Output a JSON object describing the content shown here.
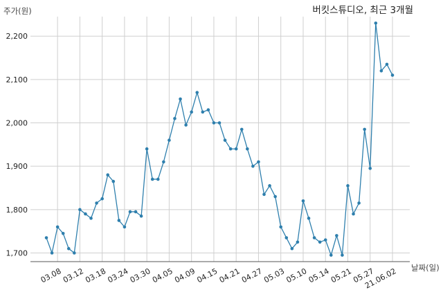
{
  "chart_data": {
    "type": "line",
    "title": "버킷스튜디오, 최근 3개월",
    "ylabel": "주가(원)",
    "xlabel": "날짜(일)",
    "ylim": [
      1680,
      2245
    ],
    "yticks": [
      1700,
      1800,
      1900,
      2000,
      2100,
      2200
    ],
    "ytick_labels": [
      "1,700",
      "1,800",
      "1,900",
      "2,000",
      "2,100",
      "2,200"
    ],
    "xtick_labels": [
      "03.08",
      "03.12",
      "03.18",
      "03.24",
      "03.30",
      "04.05",
      "04.09",
      "04.15",
      "04.21",
      "04.27",
      "05.03",
      "05.10",
      "05.14",
      "05.21",
      "05.27",
      "21.06.02"
    ],
    "xtick_index": [
      2,
      6,
      10,
      14,
      18,
      22,
      26,
      30,
      34,
      38,
      42,
      46,
      50,
      54,
      58,
      62
    ],
    "grid": true,
    "line_color": "#2e7fad",
    "series": [
      {
        "values": [
          1735,
          1700,
          1760,
          1745,
          1710,
          1700,
          1800,
          1790,
          1780,
          1815,
          1825,
          1880,
          1865,
          1775,
          1760,
          1795,
          1795,
          1785,
          1940,
          1870,
          1870,
          1910,
          1960,
          2010,
          2055,
          1995,
          2025,
          2070,
          2025,
          2030,
          2000,
          2000,
          1960,
          1940,
          1940,
          1985,
          1940,
          1900,
          1910,
          1835,
          1855,
          1830,
          1760,
          1735,
          1710,
          1725,
          1820,
          1780,
          1735,
          1725,
          1730,
          1695,
          1740,
          1695,
          1855,
          1790,
          1815,
          1985,
          1895,
          2230,
          2120,
          2135,
          2110
        ]
      }
    ]
  }
}
